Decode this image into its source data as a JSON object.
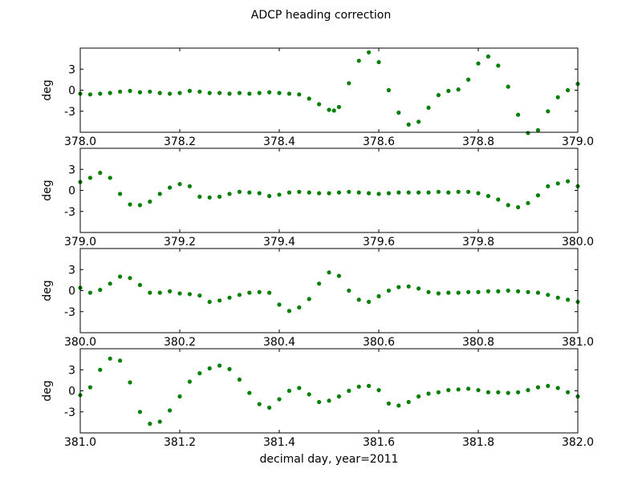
{
  "chart_data": {
    "type": "scatter",
    "title": "ADCP heading correction",
    "xlabel": "decimal day, year=2011",
    "marker_color": "#008000",
    "panels": [
      {
        "ylabel": "deg",
        "xlim": [
          378.0,
          379.0
        ],
        "ylim": [
          -6,
          6
        ],
        "xticks": [
          "378.0",
          "378.2",
          "378.4",
          "378.6",
          "378.8",
          "379.0"
        ],
        "yticks": [
          "3",
          "0",
          "-3"
        ],
        "series": [
          {
            "x": [
              378.0,
              378.02,
              378.04,
              378.06,
              378.08,
              378.1,
              378.12,
              378.14,
              378.16,
              378.18,
              378.2,
              378.22,
              378.24,
              378.26,
              378.28,
              378.3,
              378.32,
              378.34,
              378.36,
              378.38,
              378.4,
              378.42,
              378.44,
              378.46,
              378.48,
              378.5,
              378.51,
              378.52,
              378.54,
              378.56,
              378.58,
              378.6,
              378.62,
              378.64,
              378.66,
              378.68,
              378.7,
              378.72,
              378.74,
              378.76,
              378.78,
              378.8,
              378.82,
              378.84,
              378.86,
              378.88,
              378.9,
              378.92,
              378.94,
              378.96,
              378.98,
              379.0
            ],
            "y": [
              -0.5,
              -0.6,
              -0.5,
              -0.4,
              -0.2,
              -0.1,
              -0.3,
              -0.2,
              -0.4,
              -0.5,
              -0.4,
              -0.1,
              -0.2,
              -0.4,
              -0.4,
              -0.5,
              -0.4,
              -0.5,
              -0.4,
              -0.3,
              -0.4,
              -0.5,
              -0.6,
              -1.2,
              -2.0,
              -2.8,
              -2.9,
              -2.4,
              1.0,
              4.2,
              5.4,
              4.0,
              0.0,
              -3.2,
              -4.9,
              -4.5,
              -2.5,
              -0.7,
              -0.1,
              0.1,
              1.5,
              3.8,
              4.8,
              3.5,
              0.5,
              -3.5,
              -6.1,
              -5.7,
              -3.0,
              -1.0,
              0.0,
              0.9
            ]
          }
        ]
      },
      {
        "ylabel": "deg",
        "xlim": [
          379.0,
          380.0
        ],
        "ylim": [
          -6,
          6
        ],
        "xticks": [
          "379.0",
          "379.2",
          "379.4",
          "379.6",
          "379.8",
          "380.0"
        ],
        "yticks": [
          "3",
          "0",
          "-3"
        ],
        "series": [
          {
            "x": [
              379.0,
              379.02,
              379.04,
              379.06,
              379.08,
              379.1,
              379.12,
              379.14,
              379.16,
              379.18,
              379.2,
              379.22,
              379.24,
              379.26,
              379.28,
              379.3,
              379.32,
              379.34,
              379.36,
              379.38,
              379.4,
              379.42,
              379.44,
              379.46,
              379.48,
              379.5,
              379.52,
              379.54,
              379.56,
              379.58,
              379.6,
              379.62,
              379.64,
              379.66,
              379.68,
              379.7,
              379.72,
              379.74,
              379.76,
              379.78,
              379.8,
              379.82,
              379.84,
              379.86,
              379.88,
              379.9,
              379.92,
              379.94,
              379.96,
              379.98,
              380.0
            ],
            "y": [
              1.2,
              1.8,
              2.5,
              1.8,
              -0.5,
              -2.0,
              -2.1,
              -1.6,
              -0.5,
              0.4,
              0.9,
              0.6,
              -0.9,
              -1.0,
              -0.9,
              -0.5,
              -0.2,
              -0.3,
              -0.4,
              -0.8,
              -0.6,
              -0.3,
              -0.2,
              -0.3,
              -0.4,
              -0.4,
              -0.3,
              -0.2,
              -0.3,
              -0.4,
              -0.5,
              -0.4,
              -0.3,
              -0.3,
              -0.3,
              -0.3,
              -0.2,
              -0.3,
              -0.2,
              -0.2,
              -0.4,
              -0.8,
              -1.3,
              -2.1,
              -2.4,
              -1.8,
              -0.7,
              0.6,
              1.0,
              1.3,
              0.6
            ]
          }
        ]
      },
      {
        "ylabel": "deg",
        "xlim": [
          380.0,
          381.0
        ],
        "ylim": [
          -6,
          6
        ],
        "xticks": [
          "380.0",
          "380.2",
          "380.4",
          "380.6",
          "380.8",
          "381.0"
        ],
        "yticks": [
          "3",
          "0",
          "-3"
        ],
        "series": [
          {
            "x": [
              380.0,
              380.02,
              380.04,
              380.06,
              380.08,
              380.1,
              380.12,
              380.14,
              380.16,
              380.18,
              380.2,
              380.22,
              380.24,
              380.26,
              380.28,
              380.3,
              380.32,
              380.34,
              380.36,
              380.38,
              380.4,
              380.42,
              380.44,
              380.46,
              380.48,
              380.5,
              380.52,
              380.54,
              380.56,
              380.58,
              380.6,
              380.62,
              380.64,
              380.66,
              380.68,
              380.7,
              380.72,
              380.74,
              380.76,
              380.78,
              380.8,
              380.82,
              380.84,
              380.86,
              380.88,
              380.9,
              380.92,
              380.94,
              380.96,
              380.98,
              381.0
            ],
            "y": [
              0.4,
              -0.3,
              0.1,
              1.0,
              2.0,
              1.8,
              0.8,
              -0.3,
              -0.3,
              -0.1,
              -0.4,
              -0.5,
              -0.7,
              -1.6,
              -1.4,
              -1.0,
              -0.6,
              -0.3,
              -0.2,
              -0.3,
              -2.0,
              -2.9,
              -2.4,
              -1.2,
              1.0,
              2.6,
              2.1,
              0.0,
              -1.3,
              -1.6,
              -0.8,
              0.0,
              0.5,
              0.6,
              0.3,
              -0.2,
              -0.4,
              -0.3,
              -0.3,
              -0.2,
              -0.2,
              -0.1,
              -0.1,
              0.0,
              -0.1,
              -0.2,
              -0.3,
              -0.6,
              -1.0,
              -1.3,
              -1.6
            ]
          }
        ]
      },
      {
        "ylabel": "deg",
        "xlim": [
          381.0,
          382.0
        ],
        "ylim": [
          -6,
          6
        ],
        "xticks": [
          "381.0",
          "381.2",
          "381.4",
          "381.6",
          "381.8",
          "382.0"
        ],
        "yticks": [
          "3",
          "0",
          "-3"
        ],
        "series": [
          {
            "x": [
              381.0,
              381.02,
              381.04,
              381.06,
              381.08,
              381.1,
              381.12,
              381.14,
              381.16,
              381.18,
              381.2,
              381.22,
              381.24,
              381.26,
              381.28,
              381.3,
              381.32,
              381.34,
              381.36,
              381.38,
              381.4,
              381.42,
              381.44,
              381.46,
              381.48,
              381.5,
              381.52,
              381.54,
              381.56,
              381.58,
              381.6,
              381.62,
              381.64,
              381.66,
              381.68,
              381.7,
              381.72,
              381.74,
              381.76,
              381.78,
              381.8,
              381.82,
              381.84,
              381.86,
              381.88,
              381.9,
              381.92,
              381.94,
              381.96,
              381.98,
              382.0
            ],
            "y": [
              -0.6,
              0.5,
              3.0,
              4.6,
              4.3,
              1.2,
              -3.0,
              -4.7,
              -4.4,
              -2.8,
              -0.8,
              1.3,
              2.5,
              3.2,
              3.6,
              3.1,
              1.6,
              -0.3,
              -1.9,
              -2.4,
              -1.2,
              0.0,
              0.4,
              -0.5,
              -1.6,
              -1.4,
              -0.8,
              0.0,
              0.6,
              0.7,
              0.1,
              -1.8,
              -2.1,
              -1.6,
              -0.8,
              -0.4,
              -0.2,
              0.1,
              0.2,
              0.3,
              0.1,
              -0.2,
              -0.2,
              -0.3,
              -0.2,
              0.1,
              0.5,
              0.7,
              0.4,
              -0.2,
              -0.8
            ]
          }
        ]
      }
    ]
  }
}
